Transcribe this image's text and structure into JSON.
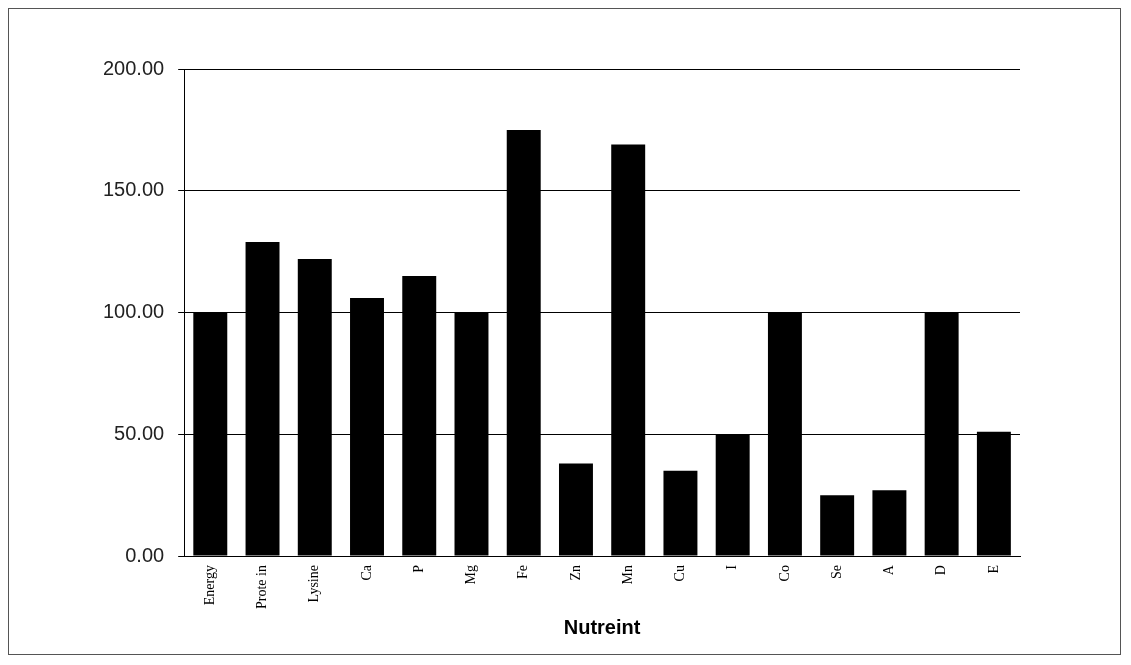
{
  "chart_data": {
    "type": "bar",
    "xlabel": "Nutreint",
    "categories": [
      "Energy",
      "Prote in",
      "Lysine",
      "Ca",
      "P",
      "Mg",
      "Fe",
      "Zn",
      "Mn",
      "Cu",
      "I",
      "Co",
      "Se",
      "A",
      "D",
      "E"
    ],
    "values": [
      100,
      129,
      122,
      106,
      115,
      100,
      175,
      38,
      169,
      35,
      50,
      100,
      25,
      27,
      100,
      51
    ],
    "color": "#000000",
    "ylim": [
      0,
      200
    ],
    "yticks": [
      {
        "value": 0,
        "label": "0.00"
      },
      {
        "value": 50,
        "label": "50.00"
      },
      {
        "value": 100,
        "label": "100.00"
      },
      {
        "value": 150,
        "label": "150.00"
      },
      {
        "value": 200,
        "label": "200.00"
      }
    ],
    "grid": "y",
    "legend": false
  }
}
